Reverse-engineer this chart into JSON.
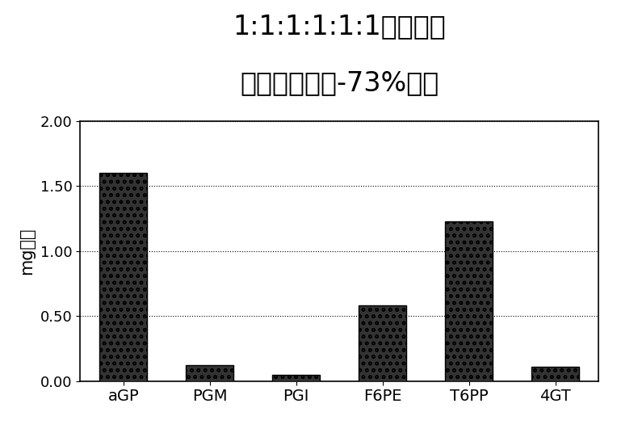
{
  "categories": [
    "aGP",
    "PGM",
    "PGI",
    "F6PE",
    "T6PP",
    "4GT"
  ],
  "values": [
    1.6,
    0.12,
    0.05,
    0.58,
    1.23,
    0.11
  ],
  "title_line1": "1:1:1:1:1:1酶负载量",
  "title_line2": "按可溶活性计-73%活性",
  "ylabel": "mg用量",
  "ylim": [
    0.0,
    2.0
  ],
  "yticks": [
    0.0,
    0.5,
    1.0,
    1.5,
    2.0
  ],
  "ytick_labels": [
    "0.00",
    "0.50",
    "1.00",
    "1.50",
    "2.00"
  ],
  "background_color": "#ffffff",
  "title_fontsize": 24,
  "axis_fontsize": 15,
  "tick_fontsize": 13,
  "xlabel_fontsize": 14
}
